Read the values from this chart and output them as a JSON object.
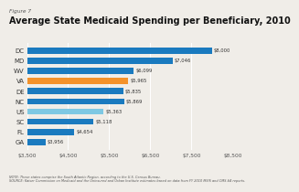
{
  "title": "Average State Medicaid Spending per Beneficiary, 2010",
  "figure_label": "Figure 7",
  "categories": [
    "GA",
    "FL",
    "SC",
    "US",
    "NC",
    "DE",
    "VA",
    "WV",
    "MD",
    "DC"
  ],
  "values": [
    3956,
    4654,
    5118,
    5363,
    5869,
    5835,
    5965,
    6099,
    7046,
    8000
  ],
  "labels": [
    "$3,956",
    "$4,654",
    "$5,118",
    "$5,363",
    "$5,869",
    "$5,835",
    "$5,965",
    "$6,099",
    "$7,046",
    "$8,000"
  ],
  "colors": [
    "#1a7abf",
    "#1a7abf",
    "#1a7abf",
    "#7ec8e3",
    "#1a7abf",
    "#1a7abf",
    "#f4922a",
    "#1a7abf",
    "#1a7abf",
    "#1a7abf"
  ],
  "xmin": 3500,
  "xlim": [
    3500,
    8500
  ],
  "xticks": [
    3500,
    4500,
    5500,
    6500,
    7500,
    8500
  ],
  "note": "NOTE: These states comprise the South Atlantic Region, according to the U.S. Census Bureau.",
  "source": "SOURCE: Kaiser Commission on Medicaid and the Uninsured and Urban Institute estimates based on data from FY 2010 MSIS and CMS-64 reports.",
  "bg_color": "#f0ede8",
  "bar_bg_color": "#d0cec8"
}
